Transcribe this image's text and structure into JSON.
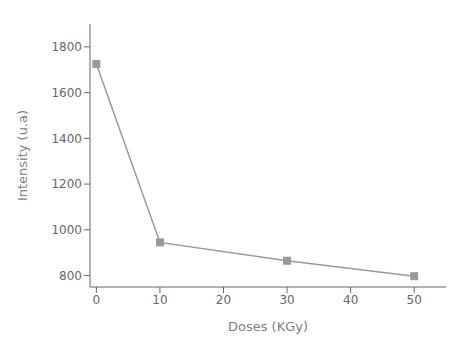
{
  "chart_data": {
    "type": "line",
    "x": [
      0,
      10,
      30,
      50
    ],
    "values": [
      1725,
      945,
      865,
      797
    ],
    "xlabel": "Doses (KGy)",
    "ylabel": "Intensity (u.a)",
    "xlim": [
      -1,
      55
    ],
    "ylim": [
      750,
      1900
    ],
    "xticks": [
      0,
      10,
      20,
      30,
      40,
      50
    ],
    "yticks": [
      800,
      1000,
      1200,
      1400,
      1600,
      1800
    ],
    "color": "#999999",
    "marker": "square",
    "grid": false
  }
}
